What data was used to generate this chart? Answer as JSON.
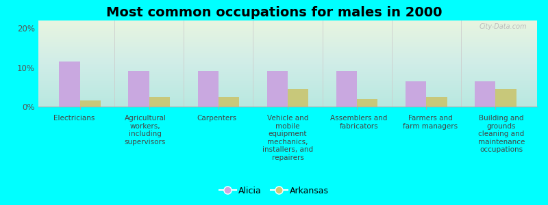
{
  "title": "Most common occupations for males in 2000",
  "categories": [
    "Electricians",
    "Agricultural\nworkers,\nincluding\nsupervisors",
    "Carpenters",
    "Vehicle and\nmobile\nequipment\nmechanics,\ninstallers, and\nrepairers",
    "Assemblers and\nfabricators",
    "Farmers and\nfarm managers",
    "Building and\ngrounds\ncleaning and\nmaintenance\noccupations"
  ],
  "alicia_values": [
    11.5,
    9.0,
    9.0,
    9.0,
    9.0,
    6.5,
    6.5
  ],
  "arkansas_values": [
    1.5,
    2.5,
    2.5,
    4.5,
    2.0,
    2.5,
    4.5
  ],
  "alicia_color": "#c9a8e0",
  "arkansas_color": "#c8c87a",
  "background_color": "#00ffff",
  "bar_width": 0.3,
  "ylim": [
    0,
    22
  ],
  "yticks": [
    0,
    10,
    20
  ],
  "ytick_labels": [
    "0%",
    "10%",
    "20%"
  ],
  "legend_labels": [
    "Alicia",
    "Arkansas"
  ],
  "watermark": "City-Data.com",
  "title_fontsize": 14,
  "tick_fontsize": 7.5,
  "legend_fontsize": 9
}
